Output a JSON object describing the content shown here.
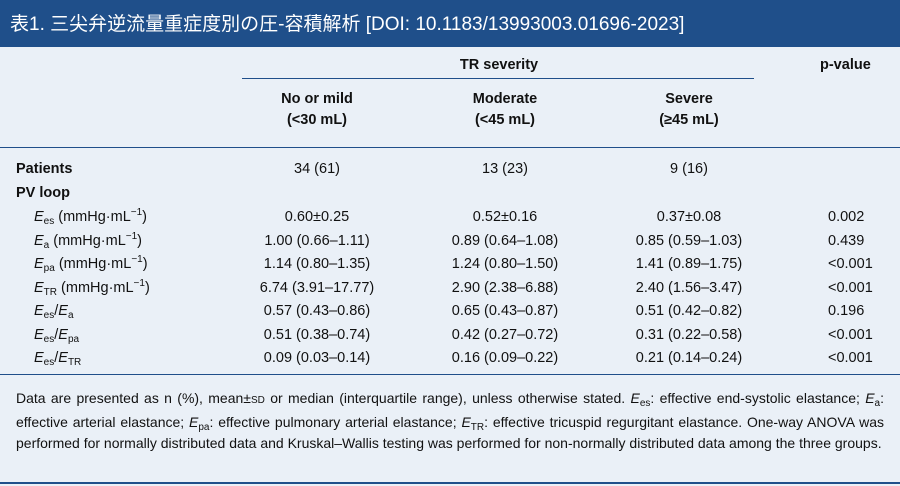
{
  "header": {
    "title": "表1. 三尖弁逆流量重症度別の圧-容積解析 [DOI: 10.1183/13993003.01696-2023]"
  },
  "table": {
    "group_header": "TR severity",
    "pvalue_header": "p-value",
    "columns": [
      {
        "line1": "No or mild",
        "line2": "(<30 mL)"
      },
      {
        "line1": "Moderate",
        "line2": "(<45 mL)"
      },
      {
        "line1": "Severe",
        "line2": "(≥45 mL)"
      }
    ],
    "patients_row": {
      "label": "Patients",
      "values": [
        "34 (61)",
        "13 (23)",
        "9 (16)"
      ],
      "p": ""
    },
    "section_label": "PV loop",
    "rows": [
      {
        "label_main": "E",
        "label_sub": "es",
        "label_unit": " (mmHg·mL",
        "label_sup": "−1",
        "label_end": ")",
        "values": [
          "0.60±0.25",
          "0.52±0.16",
          "0.37±0.08"
        ],
        "p": "0.002"
      },
      {
        "label_main": "E",
        "label_sub": "a",
        "label_unit": " (mmHg·mL",
        "label_sup": "−1",
        "label_end": ")",
        "values": [
          "1.00 (0.66–1.11)",
          "0.89 (0.64–1.08)",
          "0.85 (0.59–1.03)"
        ],
        "p": "0.439"
      },
      {
        "label_main": "E",
        "label_sub": "pa",
        "label_unit": " (mmHg·mL",
        "label_sup": "−1",
        "label_end": ")",
        "values": [
          "1.14 (0.80–1.35)",
          "1.24 (0.80–1.50)",
          "1.41 (0.89–1.75)"
        ],
        "p": "<0.001"
      },
      {
        "label_main": "E",
        "label_sub": "TR",
        "label_unit": " (mmHg·mL",
        "label_sup": "−1",
        "label_end": ")",
        "values": [
          "6.74 (3.91–17.77)",
          "2.90 (2.38–6.88)",
          "2.40 (1.56–3.47)"
        ],
        "p": "<0.001"
      },
      {
        "ratio_num": "E",
        "ratio_num_sub": "es",
        "ratio_den": "E",
        "ratio_den_sub": "a",
        "values": [
          "0.57 (0.43–0.86)",
          "0.65 (0.43–0.87)",
          "0.51 (0.42–0.82)"
        ],
        "p": "0.196"
      },
      {
        "ratio_num": "E",
        "ratio_num_sub": "es",
        "ratio_den": "E",
        "ratio_den_sub": "pa",
        "values": [
          "0.51 (0.38–0.74)",
          "0.42 (0.27–0.72)",
          "0.31 (0.22–0.58)"
        ],
        "p": "<0.001"
      },
      {
        "ratio_num": "E",
        "ratio_num_sub": "es",
        "ratio_den": "E",
        "ratio_den_sub": "TR",
        "values": [
          "0.09 (0.03–0.14)",
          "0.16 (0.09–0.22)",
          "0.21 (0.14–0.24)"
        ],
        "p": "<0.001"
      }
    ]
  },
  "footnote": {
    "part1": "Data are presented as n (%), mean±",
    "sd": "SD",
    "part2": " or median (interquartile range), unless otherwise stated. ",
    "e_es": "E",
    "e_es_sub": "es",
    "part3": ": effective end-systolic elastance; ",
    "e_a": "E",
    "e_a_sub": "a",
    "part4": ": effective arterial elastance; ",
    "e_pa": "E",
    "e_pa_sub": "pa",
    "part5": ": effective pulmonary arterial elastance; ",
    "e_tr": "E",
    "e_tr_sub": "TR",
    "part6": ": effective tricuspid regurgitant elastance. One-way ANOVA was performed for normally distributed data and Kruskal–Wallis testing was performed for non-normally distributed data among the three groups."
  },
  "colors": {
    "header_bg": "#1f4f8a",
    "table_bg": "#eaf0f7",
    "rule": "#1f4f8a"
  }
}
